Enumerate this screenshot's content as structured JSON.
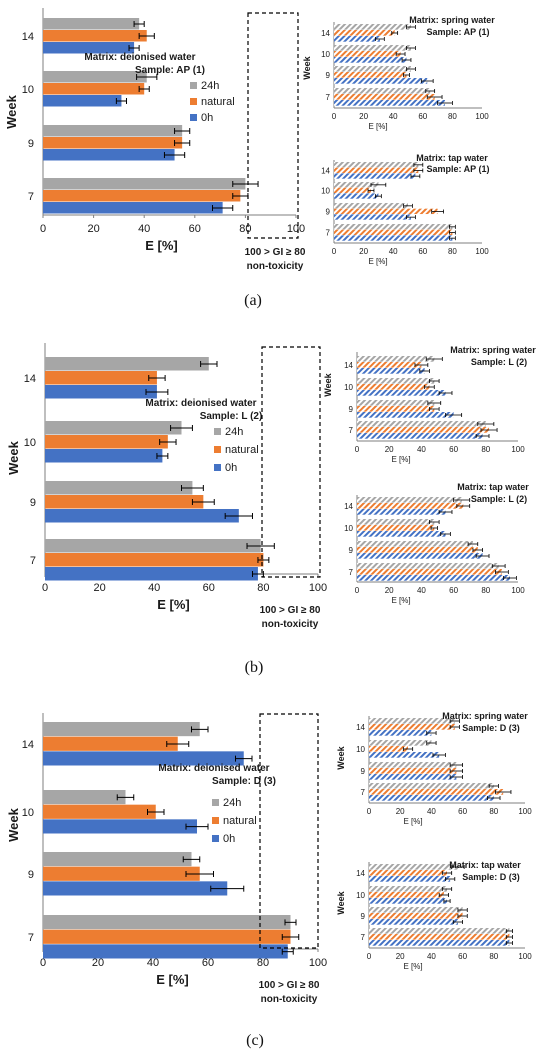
{
  "colors": {
    "s24h": "#a6a6a6",
    "natural": "#ed7d31",
    "s0h": "#4472c4",
    "axis": "#7f7f7f",
    "err": "#000000"
  },
  "panels": [
    {
      "caption": "(a)",
      "main": {
        "type": "bar",
        "orientation": "horizontal",
        "categories": [
          "7",
          "9",
          "10",
          "14"
        ],
        "xlabel": "E [%]",
        "ylabel": "Week",
        "xlim": [
          0,
          100
        ],
        "ticks": [
          "0",
          "20",
          "40",
          "60",
          "80",
          "100"
        ],
        "matrix": "Matrix: deionised water",
        "sample": "Sample: AP (1)",
        "legend": [
          "24h",
          "natural",
          "0h"
        ],
        "threshold": [
          "100 > GI ≥ 80",
          "non-toxicity"
        ],
        "series": [
          {
            "name": "24h",
            "values": [
              80,
              55,
              41,
              38
            ],
            "err": [
              5,
              3,
              4,
              2
            ]
          },
          {
            "name": "natural",
            "values": [
              78,
              55,
              40,
              41
            ],
            "err": [
              3,
              3,
              2,
              3
            ]
          },
          {
            "name": "0h",
            "values": [
              71,
              52,
              31,
              36
            ],
            "err": [
              4,
              4,
              2,
              2
            ]
          }
        ]
      },
      "insets": [
        {
          "title": "Matrix: spring water",
          "sample": "Sample: AP (1)",
          "xlabel": "E [%]",
          "ylabel": "Week",
          "xlim": [
            0,
            100
          ],
          "ticks": [
            "0",
            "20",
            "40",
            "60",
            "80",
            "100"
          ],
          "categories": [
            "7",
            "9",
            "10",
            "14"
          ],
          "series": [
            {
              "name": "24h",
              "values": [
                65,
                52,
                52,
                52
              ],
              "err": [
                3,
                3,
                3,
                3
              ]
            },
            {
              "name": "natural",
              "values": [
                68,
                49,
                45,
                41
              ],
              "err": [
                5,
                2,
                3,
                2
              ]
            },
            {
              "name": "0h",
              "values": [
                75,
                63,
                49,
                31
              ],
              "err": [
                5,
                4,
                3,
                3
              ]
            }
          ]
        },
        {
          "title": "Matrix: tap water",
          "sample": "Sample: AP (1)",
          "xlabel": "E [%]",
          "ylabel": "",
          "xlim": [
            0,
            100
          ],
          "ticks": [
            "0",
            "20",
            "40",
            "60",
            "80",
            "100"
          ],
          "categories": [
            "7",
            "9",
            "10",
            "14"
          ],
          "series": [
            {
              "name": "24h",
              "values": [
                80,
                50,
                30,
                57
              ],
              "err": [
                2,
                3,
                5,
                3
              ]
            },
            {
              "name": "natural",
              "values": [
                80,
                70,
                25,
                57
              ],
              "err": [
                2,
                4,
                2,
                3
              ]
            },
            {
              "name": "0h",
              "values": [
                80,
                52,
                30,
                55
              ],
              "err": [
                2,
                3,
                2,
                3
              ]
            }
          ]
        }
      ]
    },
    {
      "caption": "(b)",
      "main": {
        "type": "bar",
        "orientation": "horizontal",
        "categories": [
          "7",
          "9",
          "10",
          "14"
        ],
        "xlabel": "E [%]",
        "ylabel": "Week",
        "xlim": [
          0,
          100
        ],
        "ticks": [
          "0",
          "20",
          "40",
          "60",
          "80",
          "100"
        ],
        "matrix": "Matrix: deionised water",
        "sample": "Sample: L (2)",
        "legend": [
          "24h",
          "natural",
          "0h"
        ],
        "threshold": [
          "100 > GI ≥ 80",
          "non-toxicity"
        ],
        "series": [
          {
            "name": "24h",
            "values": [
              79,
              54,
              50,
              60
            ],
            "err": [
              5,
              4,
              4,
              3
            ]
          },
          {
            "name": "natural",
            "values": [
              80,
              58,
              45,
              41
            ],
            "err": [
              2,
              4,
              3,
              3
            ]
          },
          {
            "name": "0h",
            "values": [
              78,
              71,
              43,
              41
            ],
            "err": [
              2,
              5,
              2,
              4
            ]
          }
        ]
      },
      "insets": [
        {
          "title": "Matrix: spring water",
          "sample": "Sample: L (2)",
          "xlabel": "E [%]",
          "ylabel": "Week",
          "xlim": [
            0,
            100
          ],
          "ticks": [
            "0",
            "20",
            "40",
            "60",
            "80",
            "100"
          ],
          "categories": [
            "7",
            "9",
            "10",
            "14"
          ],
          "series": [
            {
              "name": "24h",
              "values": [
                80,
                48,
                48,
                48
              ],
              "err": [
                5,
                4,
                3,
                5
              ]
            },
            {
              "name": "natural",
              "values": [
                82,
                48,
                45,
                40
              ],
              "err": [
                5,
                3,
                3,
                4
              ]
            },
            {
              "name": "0h",
              "values": [
                78,
                60,
                55,
                42
              ],
              "err": [
                4,
                5,
                4,
                3
              ]
            }
          ]
        },
        {
          "title": "Matrix: tap water",
          "sample": "Sample: L (2)",
          "xlabel": "E [%]",
          "ylabel": "",
          "xlim": [
            0,
            100
          ],
          "ticks": [
            "0",
            "20",
            "40",
            "60",
            "80",
            "100"
          ],
          "categories": [
            "7",
            "9",
            "10",
            "14"
          ],
          "series": [
            {
              "name": "24h",
              "values": [
                88,
                72,
                48,
                65
              ],
              "err": [
                4,
                3,
                3,
                5
              ]
            },
            {
              "name": "natural",
              "values": [
                90,
                75,
                48,
                66
              ],
              "err": [
                4,
                3,
                2,
                4
              ]
            },
            {
              "name": "0h",
              "values": [
                95,
                78,
                55,
                55
              ],
              "err": [
                4,
                4,
                3,
                4
              ]
            }
          ]
        }
      ]
    },
    {
      "caption": "(c)",
      "main": {
        "type": "bar",
        "orientation": "horizontal",
        "categories": [
          "7",
          "9",
          "10",
          "14"
        ],
        "xlabel": "E [%]",
        "ylabel": "Week",
        "xlim": [
          0,
          100
        ],
        "ticks": [
          "0",
          "20",
          "40",
          "60",
          "80",
          "100"
        ],
        "matrix": "Matrix: deionised water",
        "sample": "Sample: D (3)",
        "legend": [
          "24h",
          "natural",
          "0h"
        ],
        "threshold": [
          "100 > GI ≥ 80",
          "non-toxicity"
        ],
        "series": [
          {
            "name": "24h",
            "values": [
              90,
              54,
              30,
              57
            ],
            "err": [
              2,
              3,
              3,
              3
            ]
          },
          {
            "name": "natural",
            "values": [
              90,
              57,
              41,
              49
            ],
            "err": [
              3,
              5,
              3,
              4
            ]
          },
          {
            "name": "0h",
            "values": [
              89,
              67,
              56,
              73
            ],
            "err": [
              2,
              6,
              4,
              3
            ]
          }
        ]
      },
      "insets": [
        {
          "title": "Matrix: spring water",
          "sample": "Sample: D (3)",
          "xlabel": "E [%]",
          "ylabel": "Week",
          "xlim": [
            0,
            100
          ],
          "ticks": [
            "0",
            "20",
            "40",
            "60",
            "80",
            "100"
          ],
          "categories": [
            "7",
            "9",
            "10",
            "14"
          ],
          "series": [
            {
              "name": "24h",
              "values": [
                80,
                56,
                40,
                55
              ],
              "err": [
                3,
                4,
                3,
                3
              ]
            },
            {
              "name": "natural",
              "values": [
                86,
                56,
                25,
                55
              ],
              "err": [
                5,
                4,
                3,
                3
              ]
            },
            {
              "name": "0h",
              "values": [
                80,
                56,
                45,
                40
              ],
              "err": [
                4,
                4,
                4,
                3
              ]
            }
          ]
        },
        {
          "title": "Matrix: tap water",
          "sample": "Sample: D (3)",
          "xlabel": "E [%]",
          "ylabel": "Week",
          "xlim": [
            0,
            100
          ],
          "ticks": [
            "0",
            "20",
            "40",
            "60",
            "80",
            "100"
          ],
          "categories": [
            "7",
            "9",
            "10",
            "14"
          ],
          "series": [
            {
              "name": "24h",
              "values": [
                90,
                60,
                50,
                57
              ],
              "err": [
                2,
                3,
                3,
                4
              ]
            },
            {
              "name": "natural",
              "values": [
                90,
                60,
                48,
                50
              ],
              "err": [
                2,
                3,
                3,
                3
              ]
            },
            {
              "name": "0h",
              "values": [
                90,
                57,
                50,
                52
              ],
              "err": [
                2,
                3,
                2,
                3
              ]
            }
          ]
        }
      ]
    }
  ]
}
